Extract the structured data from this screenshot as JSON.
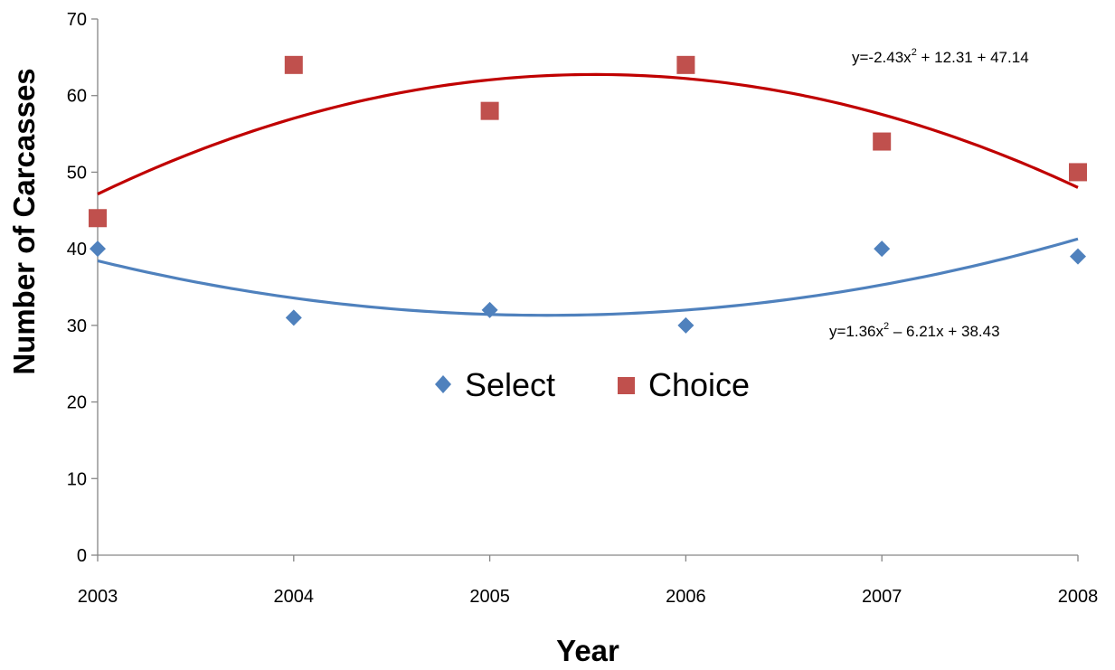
{
  "chart_data": {
    "type": "scatter",
    "title": "",
    "xlabel": "Year",
    "ylabel": "Number of Carcasses",
    "x": [
      2003,
      2004,
      2005,
      2006,
      2007,
      2008
    ],
    "x_tick_labels": [
      "2003",
      "2004",
      "2005",
      "2006",
      "2007",
      "2008"
    ],
    "ylim": [
      0,
      70
    ],
    "y_ticks": [
      0,
      10,
      20,
      30,
      40,
      50,
      60,
      70
    ],
    "y_tick_labels": [
      "0",
      "10",
      "20",
      "30",
      "40",
      "50",
      "60",
      "70"
    ],
    "grid": false,
    "legend_position": "center",
    "series": [
      {
        "name": "Select",
        "marker": "diamond",
        "color": "#4F81BD",
        "values": [
          40,
          31,
          32,
          30,
          40,
          39
        ],
        "trendline": {
          "type": "polynomial-2",
          "color": "#4F81BD",
          "coefficients": [
            1.36,
            -6.21,
            38.43
          ],
          "equation_text": "y=1.36x2 – 6.21x + 38.43",
          "equation_parts": [
            "y=1.36x",
            "2",
            " – 6.21x + 38.43"
          ]
        }
      },
      {
        "name": "Choice",
        "marker": "square",
        "color": "#C0504D",
        "values": [
          44,
          64,
          58,
          64,
          54,
          50
        ],
        "trendline": {
          "type": "polynomial-2",
          "color": "#C00000",
          "coefficients": [
            -2.43,
            12.31,
            47.14
          ],
          "equation_text": "y=-2.43x2 + 12.31 + 47.14",
          "equation_parts": [
            "y=-2.43x",
            "2",
            " + 12.31 + 47.14"
          ]
        }
      }
    ]
  }
}
